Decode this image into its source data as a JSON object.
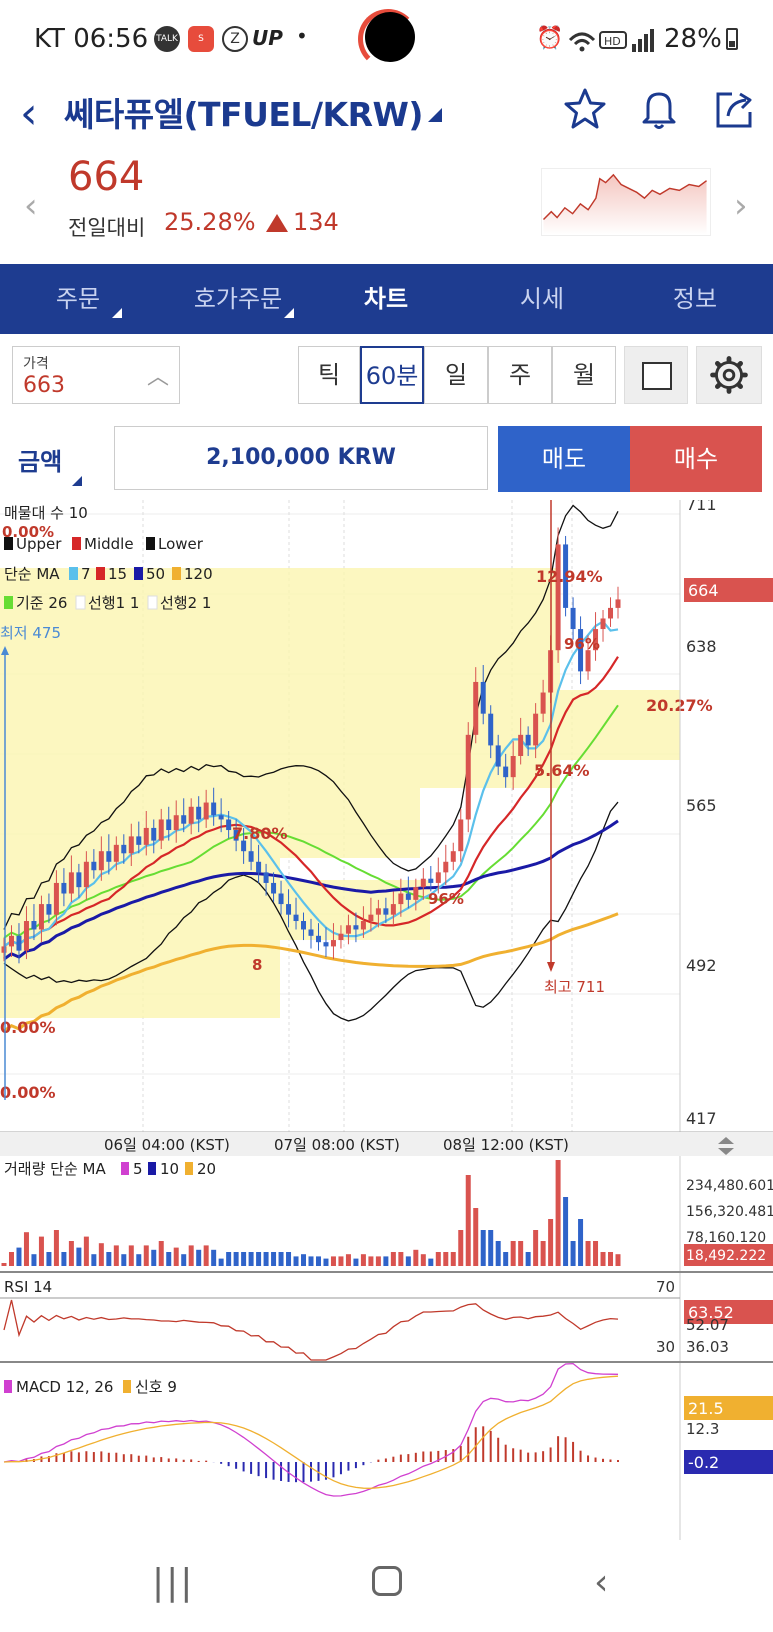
{
  "status": {
    "carrier": "KT",
    "time": "06:56",
    "z_app": "Z",
    "up_app": "UP",
    "dot": "•",
    "battery": "28%"
  },
  "header": {
    "title": "쎄타퓨엘(TFUEL/KRW)",
    "price": "664",
    "vs_label": "전일대비",
    "change_pct": "25.28%",
    "change_abs": "134"
  },
  "tabs": [
    "주문",
    "호가주문",
    "차트",
    "시세",
    "정보"
  ],
  "controls": {
    "price_label": "가격",
    "price_value": "663",
    "intervals": [
      "틱",
      "60분",
      "일",
      "주",
      "월"
    ],
    "active_interval": "60분"
  },
  "order": {
    "amount_label": "금액",
    "amount_value": "2,100,000 KRW",
    "sell_label": "매도",
    "buy_label": "매수"
  },
  "chart_data": {
    "type": "candlestick",
    "legend": {
      "volume_profile": "매물대 수 10",
      "bb": [
        "Upper",
        "Middle",
        "Lower"
      ],
      "ma_label": "단순 MA",
      "ma_periods": [
        "7",
        "15",
        "50",
        "120"
      ],
      "ichimoku": [
        "기준 26",
        "선행1 1",
        "선행2 1"
      ]
    },
    "colors": {
      "ma7": "#5bc0eb",
      "ma15": "#d62728",
      "ma50": "#1a1aa6",
      "ma120": "#f0b030",
      "ichimoku": "#66dd33"
    },
    "y_ticks": [
      "711",
      "638",
      "565",
      "492",
      "417"
    ],
    "ylim": [
      417,
      711
    ],
    "current_price_tag": "664",
    "x_ticks": [
      "06일 04:00 (KST)",
      "07일 08:00 (KST)",
      "08일 12:00 (KST)"
    ],
    "annotations": {
      "low": "최저 475",
      "high": "최고 711",
      "pct_labels": [
        "0.00%",
        "7.80%",
        "20.27%",
        "12.94%",
        "5.64%",
        "0.00%",
        "0.00%"
      ],
      "partial_labels": [
        "96%",
        "96%",
        "8"
      ]
    },
    "closes": [
      500,
      505,
      498,
      512,
      508,
      520,
      515,
      530,
      525,
      535,
      528,
      540,
      536,
      545,
      540,
      548,
      544,
      552,
      548,
      556,
      550,
      560,
      555,
      562,
      558,
      566,
      560,
      568,
      562,
      560,
      555,
      550,
      545,
      540,
      535,
      530,
      525,
      520,
      515,
      512,
      508,
      505,
      502,
      500,
      503,
      506,
      510,
      508,
      512,
      515,
      518,
      515,
      520,
      525,
      522,
      528,
      532,
      530,
      535,
      540,
      545,
      560,
      600,
      625,
      610,
      595,
      585,
      580,
      590,
      600,
      595,
      610,
      620,
      640,
      690,
      660,
      650,
      630,
      640,
      650,
      655,
      660,
      664
    ]
  },
  "volume_panel": {
    "label": "거래량 단순 MA",
    "periods": [
      "5",
      "10",
      "20"
    ],
    "ticks": [
      "234,480.601",
      "156,320.481",
      "78,160.120"
    ],
    "current": "18,492.222"
  },
  "rsi_panel": {
    "label": "RSI 14",
    "upper": "70",
    "lower": "30",
    "ticks": [
      "52.07",
      "36.03"
    ],
    "current": "63.52"
  },
  "macd_panel": {
    "label": "MACD 12, 26",
    "signal": "신호 9",
    "ticks": [
      "12.3"
    ],
    "macd_value": "21.5",
    "hist_value": "-0.2"
  }
}
